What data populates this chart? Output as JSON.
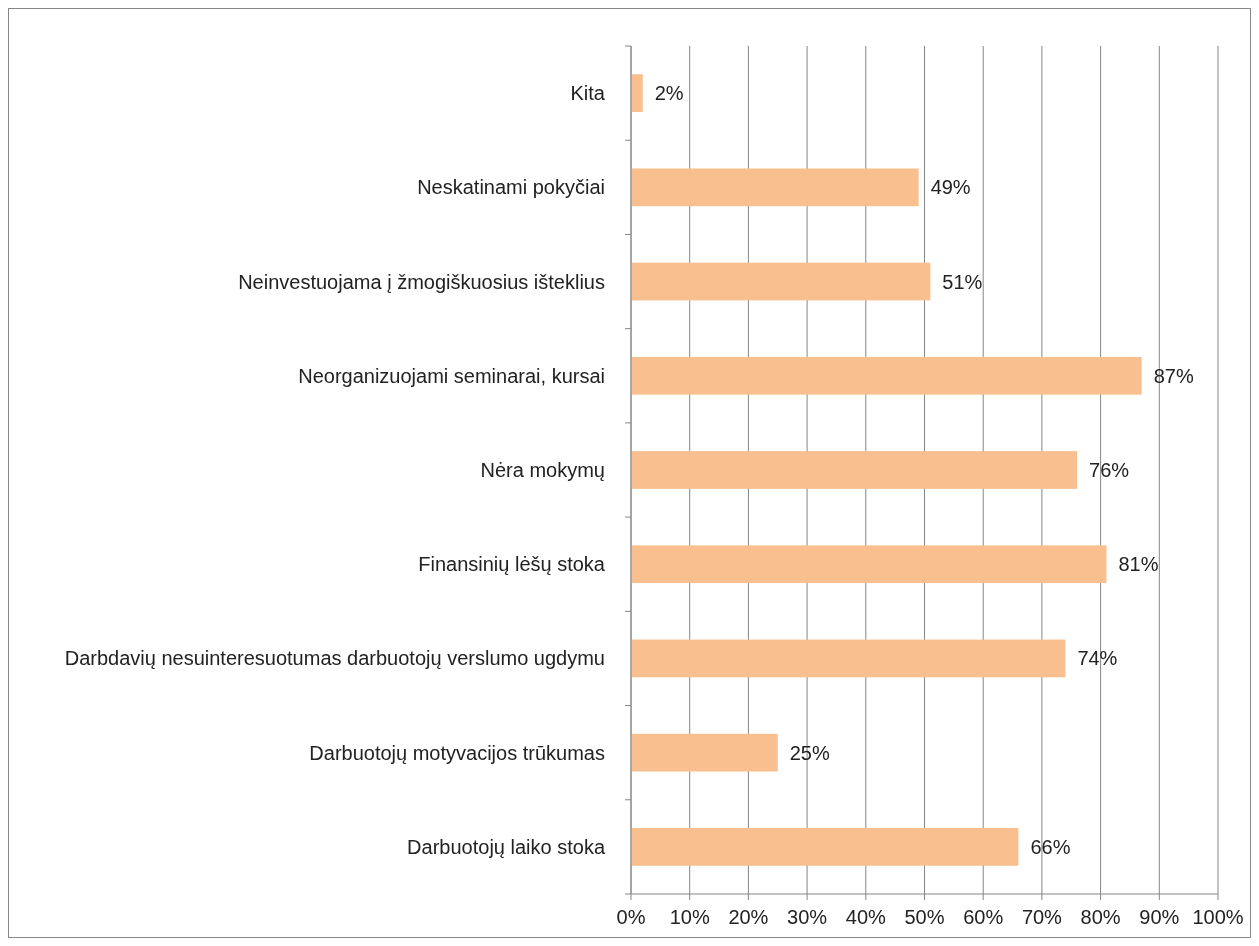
{
  "chart_data": {
    "type": "bar",
    "orientation": "horizontal",
    "categories": [
      "Kita",
      "Neskatinami pokyčiai",
      "Neinvestuojama į žmogiškuosius išteklius",
      "Neorganizuojami seminarai, kursai",
      "Nėra mokymų",
      "Finansinių lėšų stoka",
      "Darbdavių nesuinteresuotumas darbuotojų verslumo ugdymu",
      "Darbuotojų motyvacijos trūkumas",
      "Darbuotojų laiko stoka"
    ],
    "values": [
      2,
      49,
      51,
      87,
      76,
      81,
      74,
      25,
      66
    ],
    "value_labels": [
      "2%",
      "49%",
      "51%",
      "87%",
      "76%",
      "81%",
      "74%",
      "25%",
      "66%"
    ],
    "color": "#f9bf8f",
    "xlim": [
      0,
      100
    ],
    "xticks": [
      {
        "value": 0,
        "label": "0%"
      },
      {
        "value": 10,
        "label": "10%"
      },
      {
        "value": 20,
        "label": "20%"
      },
      {
        "value": 30,
        "label": "30%"
      },
      {
        "value": 40,
        "label": "40%"
      },
      {
        "value": 50,
        "label": "50%"
      },
      {
        "value": 60,
        "label": "60%"
      },
      {
        "value": 70,
        "label": "70%"
      },
      {
        "value": 80,
        "label": "80%"
      },
      {
        "value": 90,
        "label": "90%"
      },
      {
        "value": 100,
        "label": "100%"
      }
    ],
    "grid": "x"
  }
}
